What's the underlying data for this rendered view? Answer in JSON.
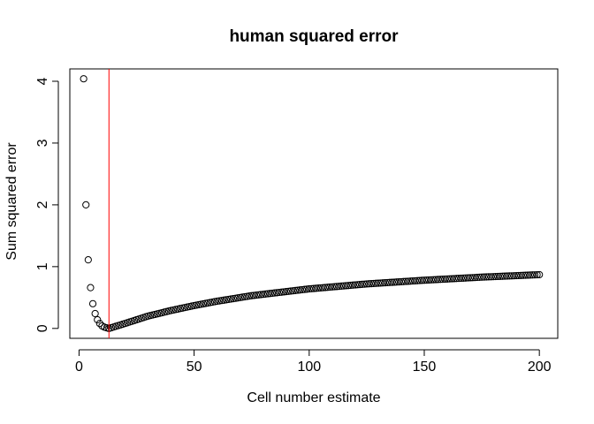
{
  "chart_data": {
    "type": "scatter",
    "title": "human squared error",
    "xlabel": "Cell number estimate",
    "ylabel": "Sum squared error",
    "xlim": [
      -4,
      208
    ],
    "ylim": [
      -0.16,
      4.2
    ],
    "x_ticks": [
      0,
      50,
      100,
      150,
      200
    ],
    "y_ticks": [
      0,
      1,
      2,
      3,
      4
    ],
    "x_tick_labels": [
      "0",
      "50",
      "100",
      "150",
      "200"
    ],
    "y_tick_labels": [
      "0",
      "1",
      "2",
      "3",
      "4"
    ],
    "grid": false,
    "vertical_line": {
      "x": 13,
      "color": "#ff0000"
    },
    "point_style": "open-circle",
    "series": [
      {
        "x_start": 2,
        "x_end": 200,
        "x_step": 1,
        "head_values": [
          4.04,
          2.0,
          1.11,
          0.66,
          0.4,
          0.24,
          0.14,
          0.08,
          0.04,
          0.02,
          0.01,
          0.0
        ],
        "curve_anchors": [
          [
            13,
            0.0
          ],
          [
            20,
            0.08
          ],
          [
            30,
            0.2
          ],
          [
            40,
            0.29
          ],
          [
            50,
            0.37
          ],
          [
            60,
            0.44
          ],
          [
            75,
            0.53
          ],
          [
            100,
            0.64
          ],
          [
            125,
            0.72
          ],
          [
            150,
            0.78
          ],
          [
            175,
            0.83
          ],
          [
            200,
            0.87
          ]
        ]
      }
    ]
  }
}
